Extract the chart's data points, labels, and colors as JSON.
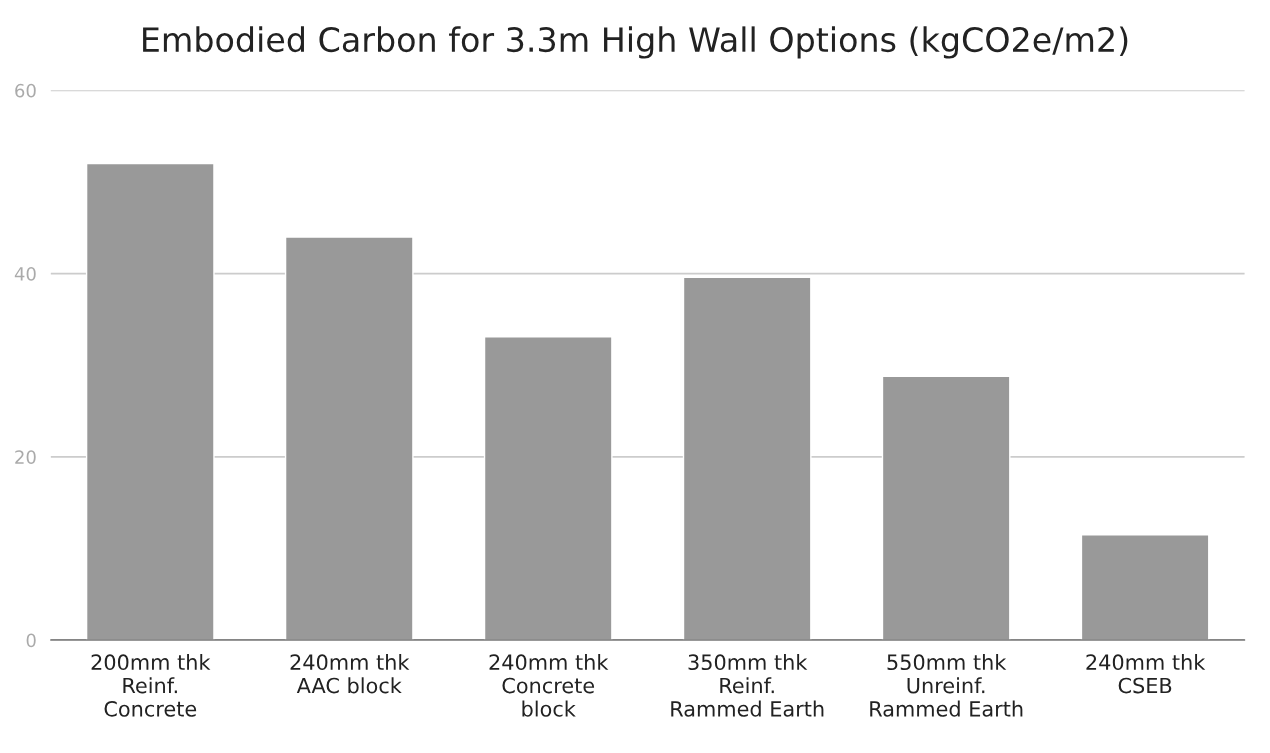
{
  "chart_data": {
    "type": "bar",
    "title": "Embodied Carbon for 3.3m High Wall Options (kgCO2e/m2)",
    "categories": [
      "200mm thk\nReinf.\nConcrete",
      "240mm thk\nAAC block",
      "240mm thk\nConcrete\nblock",
      "350mm thk\nReinf.\nRammed Earth",
      "550mm thk\nUnreinf.\nRammed Earth",
      "240mm thk\nCSEB"
    ],
    "values": [
      52,
      44,
      33.1,
      39.6,
      28.8,
      11.5
    ],
    "color": "#999999",
    "ylim": [
      0,
      60
    ],
    "yticks": [
      0,
      20,
      40,
      60
    ],
    "grid": "y"
  }
}
